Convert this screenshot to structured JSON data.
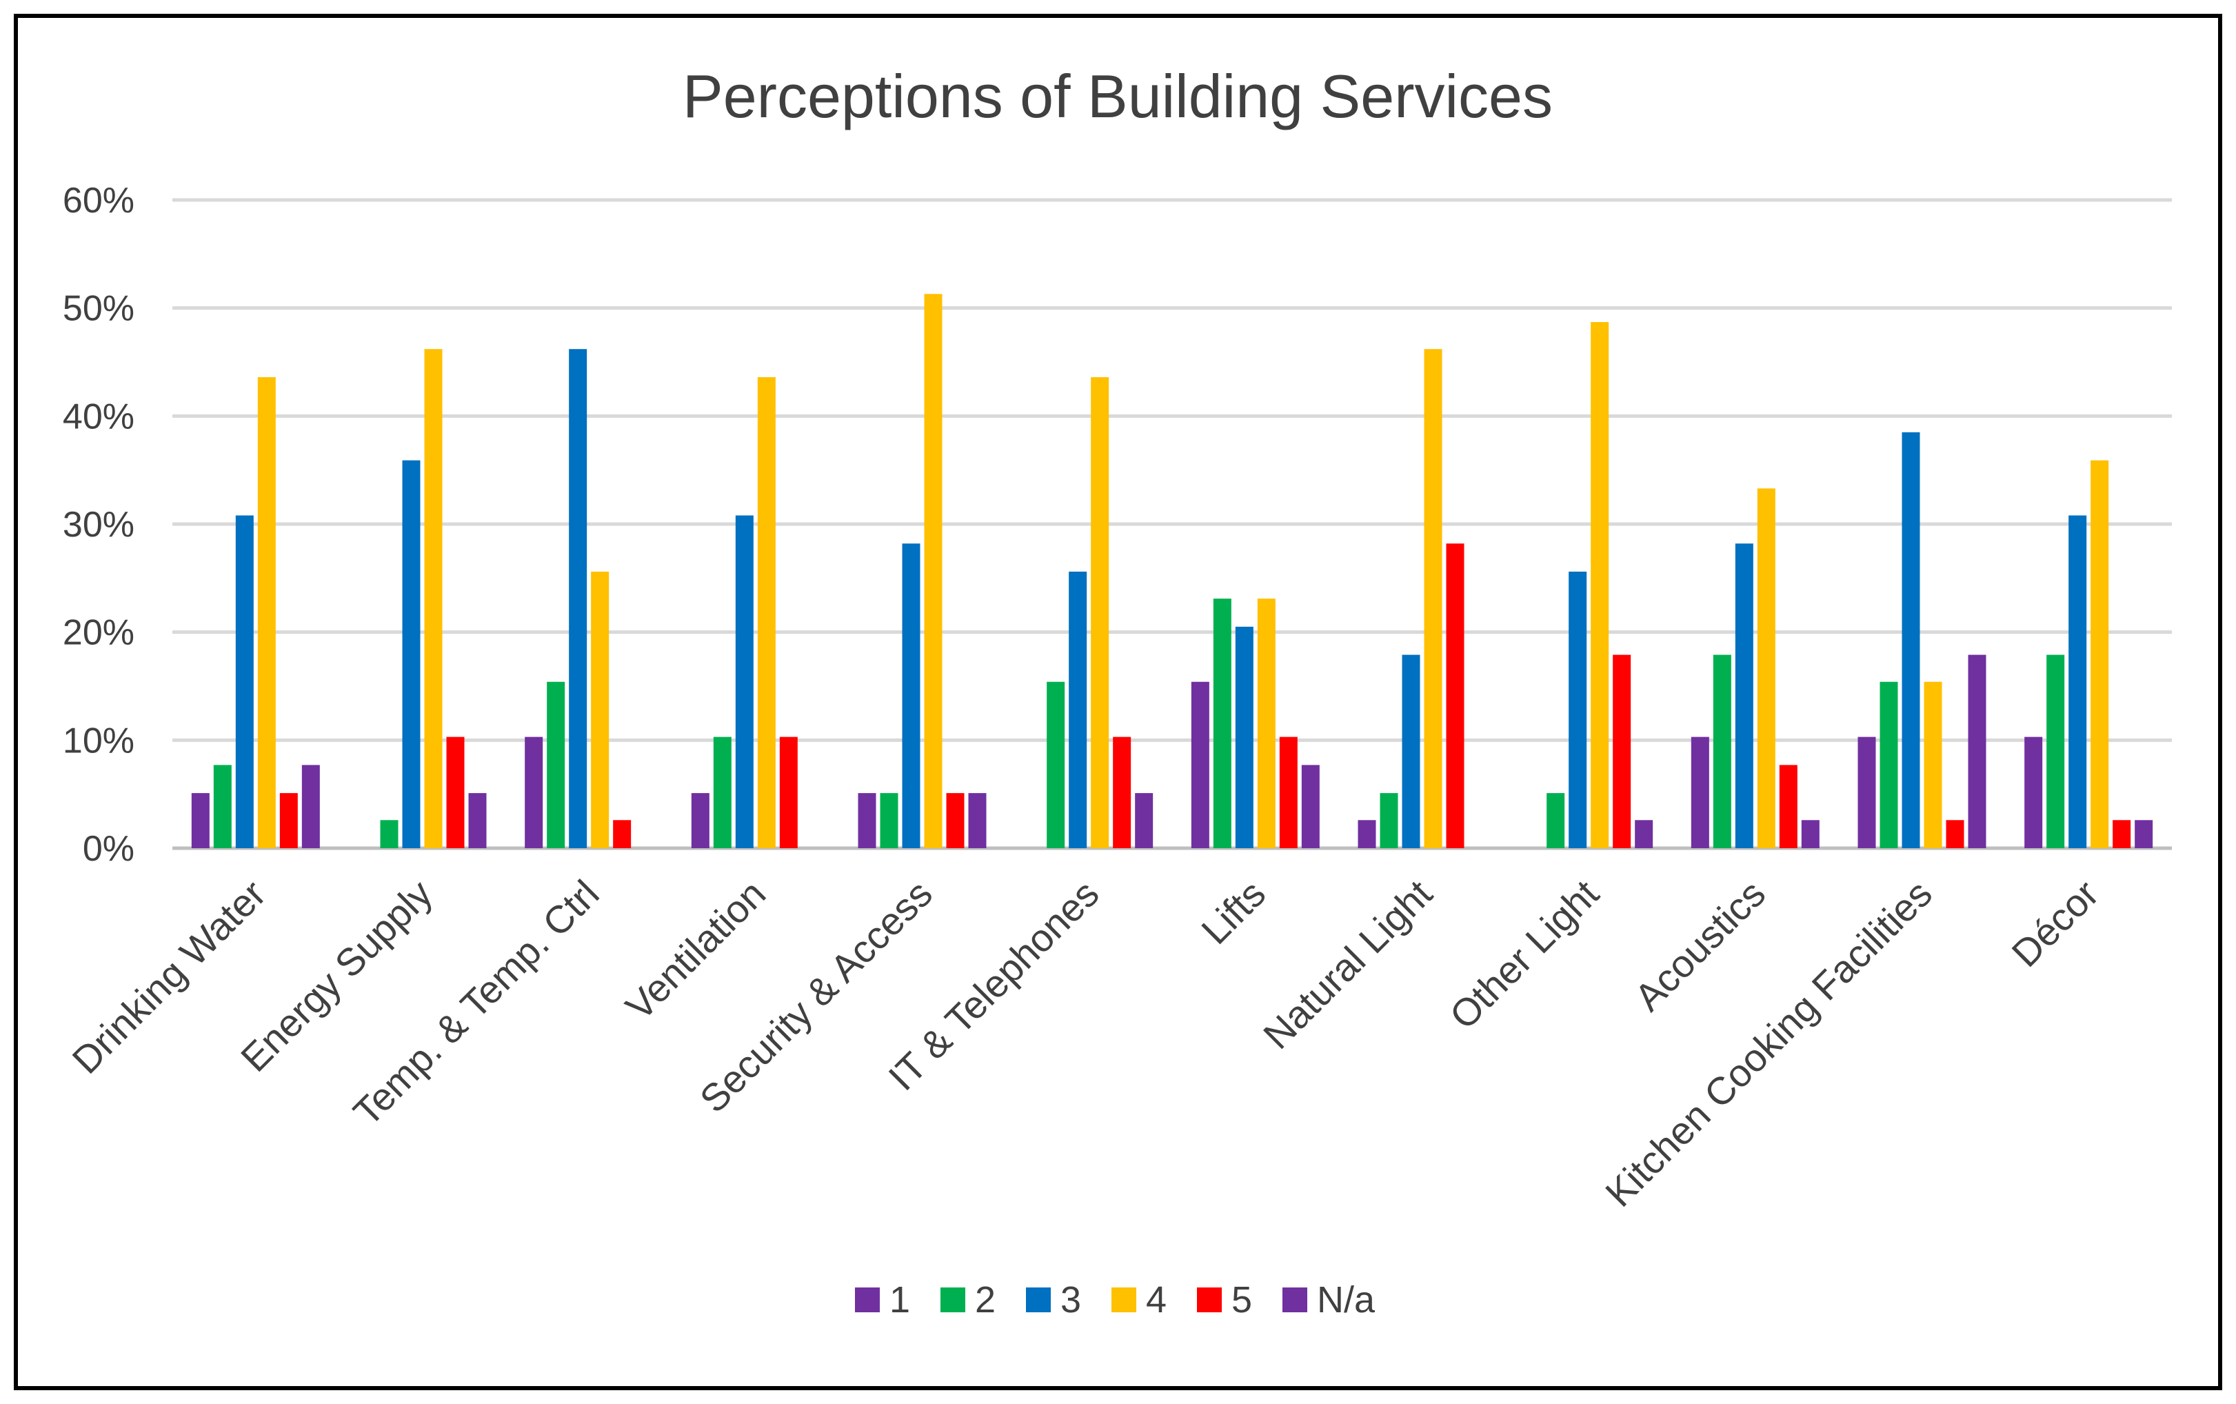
{
  "chart_data": {
    "type": "bar",
    "title": "Perceptions of Building Services",
    "xlabel": "",
    "ylabel": "",
    "ylim": [
      0,
      60
    ],
    "y_ticks": [
      "0%",
      "10%",
      "20%",
      "30%",
      "40%",
      "50%",
      "60%"
    ],
    "grid": true,
    "legend_position": "bottom",
    "categories": [
      "Drinking Water",
      "Energy Supply",
      "Temp. & Temp. Ctrl",
      "Ventilation",
      "Security & Access",
      "IT & Telephones",
      "Lifts",
      "Natural Light",
      "Other Light",
      "Acoustics",
      "Kitchen Cooking Facilities",
      "Décor"
    ],
    "series": [
      {
        "name": "1",
        "color": "#7030A0",
        "values": [
          5.1,
          0,
          10.3,
          5.1,
          5.1,
          0,
          15.4,
          2.6,
          0,
          10.3,
          10.3,
          10.3
        ]
      },
      {
        "name": "2",
        "color": "#00B050",
        "values": [
          7.7,
          2.6,
          15.4,
          10.3,
          5.1,
          15.4,
          23.1,
          5.1,
          5.1,
          17.9,
          15.4,
          17.9
        ]
      },
      {
        "name": "3",
        "color": "#0070C0",
        "values": [
          30.8,
          35.9,
          46.2,
          30.8,
          28.2,
          25.6,
          20.5,
          17.9,
          25.6,
          28.2,
          38.5,
          30.8
        ]
      },
      {
        "name": "4",
        "color": "#FFC000",
        "values": [
          43.6,
          46.2,
          25.6,
          43.6,
          51.3,
          43.6,
          23.1,
          46.2,
          48.7,
          33.3,
          15.4,
          35.9
        ]
      },
      {
        "name": "5",
        "color": "#FF0000",
        "values": [
          5.1,
          10.3,
          2.6,
          10.3,
          5.1,
          10.3,
          10.3,
          28.2,
          17.9,
          7.7,
          2.6,
          2.6
        ]
      },
      {
        "name": "N/a",
        "color": "#7030A0",
        "values": [
          7.7,
          5.1,
          0,
          0,
          5.1,
          5.1,
          7.7,
          0,
          2.6,
          2.6,
          17.9,
          2.6
        ]
      }
    ]
  }
}
